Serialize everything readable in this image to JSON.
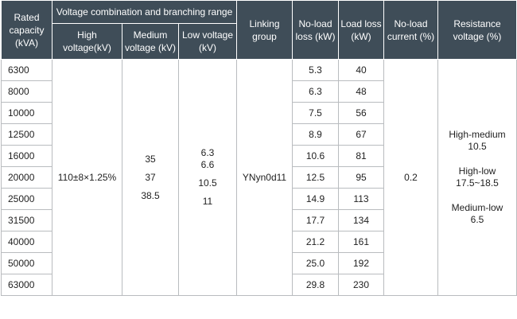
{
  "headers": {
    "rated_capacity": "Rated capacity (kVA)",
    "voltage_group": "Voltage combination and branching range",
    "high_voltage": "High voltage(kV)",
    "medium_voltage": "Medium voltage (kV)",
    "low_voltage": "Low voltage (kV)",
    "linking_group": "Linking group",
    "no_load_loss": "No-load loss (kW)",
    "load_loss": "Load loss (kW)",
    "no_load_current": "No-load current (%)",
    "resistance_voltage": "Resistance voltage (%)"
  },
  "rows": [
    {
      "capacity": "6300",
      "no_load_loss": "5.3",
      "load_loss": "40"
    },
    {
      "capacity": "8000",
      "no_load_loss": "6.3",
      "load_loss": "48"
    },
    {
      "capacity": "10000",
      "no_load_loss": "7.5",
      "load_loss": "56"
    },
    {
      "capacity": "12500",
      "no_load_loss": "8.9",
      "load_loss": "67"
    },
    {
      "capacity": "16000",
      "no_load_loss": "10.6",
      "load_loss": "81"
    },
    {
      "capacity": "20000",
      "no_load_loss": "12.5",
      "load_loss": "95"
    },
    {
      "capacity": "25000",
      "no_load_loss": "14.9",
      "load_loss": "113"
    },
    {
      "capacity": "31500",
      "no_load_loss": "17.7",
      "load_loss": "134"
    },
    {
      "capacity": "40000",
      "no_load_loss": "21.2",
      "load_loss": "161"
    },
    {
      "capacity": "50000",
      "no_load_loss": "25.0",
      "load_loss": "192"
    },
    {
      "capacity": "63000",
      "no_load_loss": "29.8",
      "load_loss": "230"
    }
  ],
  "shared": {
    "high_voltage": "110±8×1.25%",
    "medium_voltage": [
      "35",
      "37",
      "38.5"
    ],
    "low_voltage": [
      "6.3",
      "6.6",
      "10.5",
      "11"
    ],
    "linking_group": "YNyn0d11",
    "no_load_current": "0.2",
    "resistance_voltage": [
      {
        "label": "High-medium",
        "value": "10.5"
      },
      {
        "label": "High-low",
        "value": "17.5~18.5"
      },
      {
        "label": "Medium-low",
        "value": "6.5"
      }
    ]
  }
}
